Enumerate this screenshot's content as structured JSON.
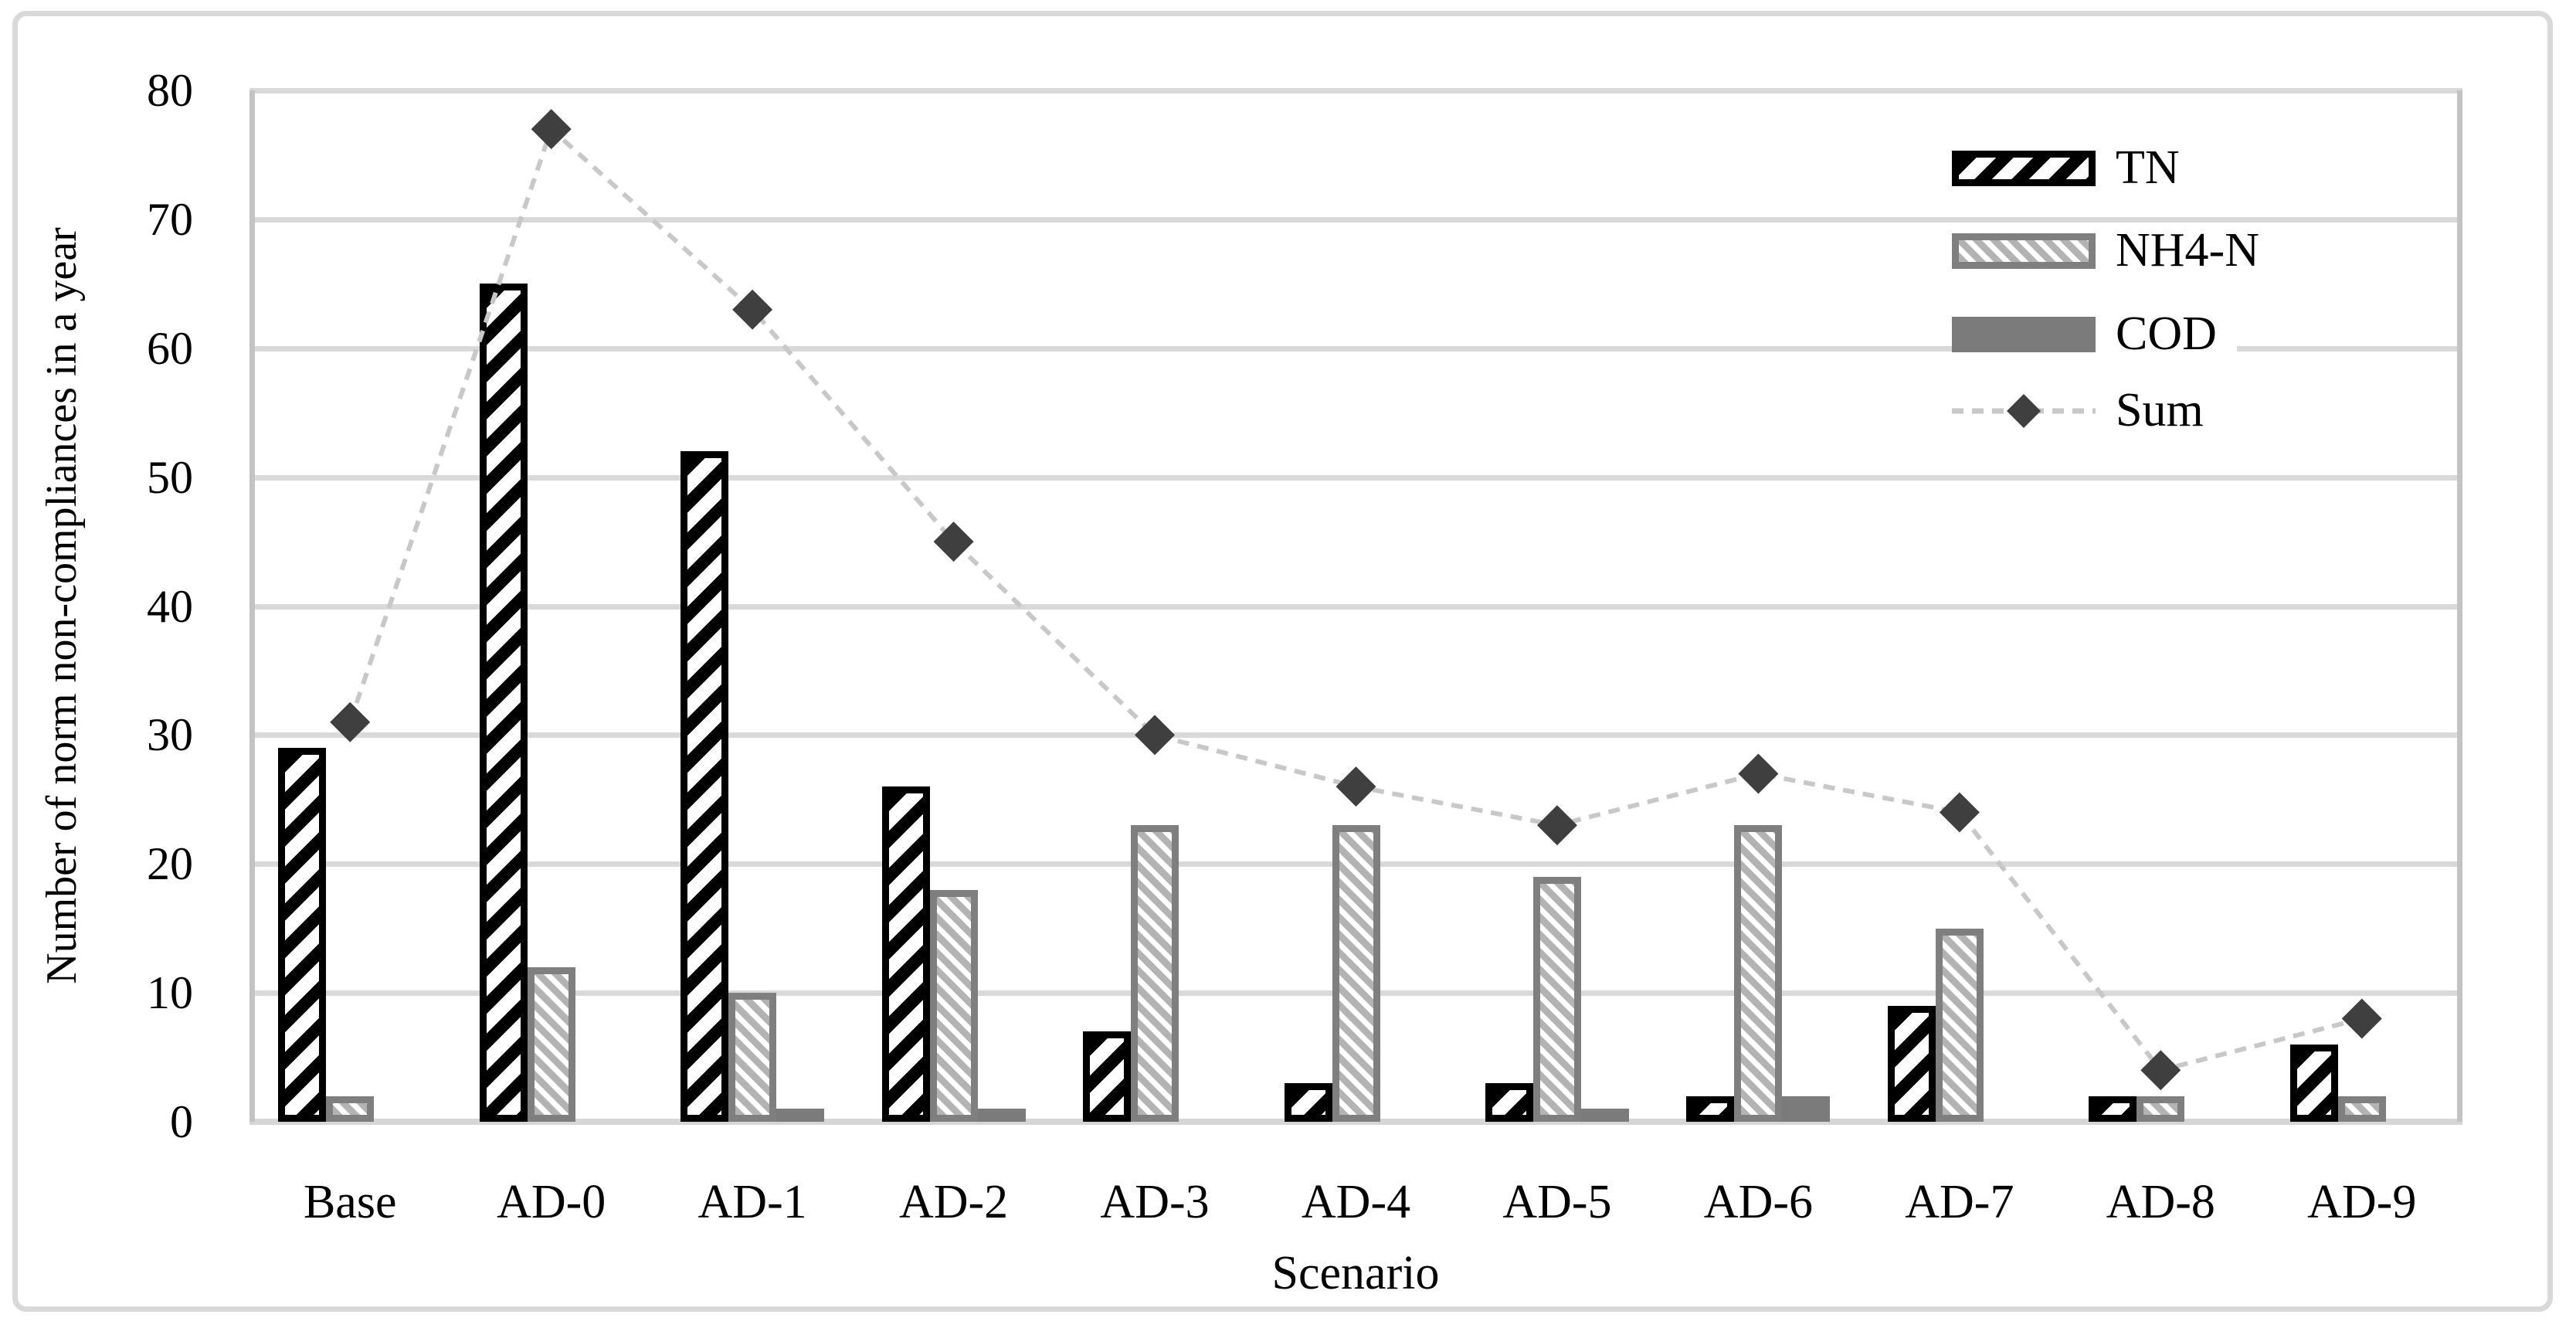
{
  "chart_data": {
    "type": "bar",
    "subtype": "clustered-bars-with-dashed-line-overlay",
    "title": "",
    "xlabel": "Scenario",
    "ylabel": "Number of norm non-compliances in a year",
    "categories": [
      "Base",
      "AD-0",
      "AD-1",
      "AD-2",
      "AD-3",
      "AD-4",
      "AD-5",
      "AD-6",
      "AD-7",
      "AD-8",
      "AD-9"
    ],
    "series": [
      {
        "name": "TN",
        "type": "bar",
        "swatch": "black-diagonal-hatch",
        "values": [
          29,
          65,
          52,
          26,
          7,
          3,
          3,
          2,
          9,
          2,
          6
        ]
      },
      {
        "name": "NH4-N",
        "type": "bar",
        "swatch": "gray-diagonal-hatch",
        "values": [
          2,
          12,
          10,
          18,
          23,
          23,
          19,
          23,
          15,
          2,
          2
        ]
      },
      {
        "name": "COD",
        "type": "bar",
        "swatch": "solid-gray",
        "values": [
          0,
          0,
          1,
          1,
          0,
          0,
          1,
          2,
          0,
          0,
          0
        ]
      },
      {
        "name": "Sum",
        "type": "line",
        "swatch": "dashed-line-diamond-marker",
        "values": [
          31,
          77,
          63,
          45,
          30,
          26,
          23,
          27,
          24,
          4,
          8
        ]
      }
    ],
    "ylim": [
      0,
      80
    ],
    "y_ticks": [
      0,
      10,
      20,
      30,
      40,
      50,
      60,
      70,
      80
    ],
    "grid": true,
    "legend_position": "top-right",
    "legend_entries": [
      "TN",
      "NH4-N",
      "COD",
      "Sum"
    ],
    "colors": {
      "tn_hatch": "#000000",
      "nh4_hatch": "#b3b3b3",
      "nh4_border": "#7f7f7f",
      "cod_fill": "#7b7b7b",
      "sum_marker": "#3f3f3f",
      "sum_line": "#c8c8c8",
      "gridline": "#d9d9d9",
      "plot_border": "#c3c3c3",
      "figure_border": "#d9d9d9",
      "text": "#000000",
      "background": "#ffffff"
    }
  }
}
